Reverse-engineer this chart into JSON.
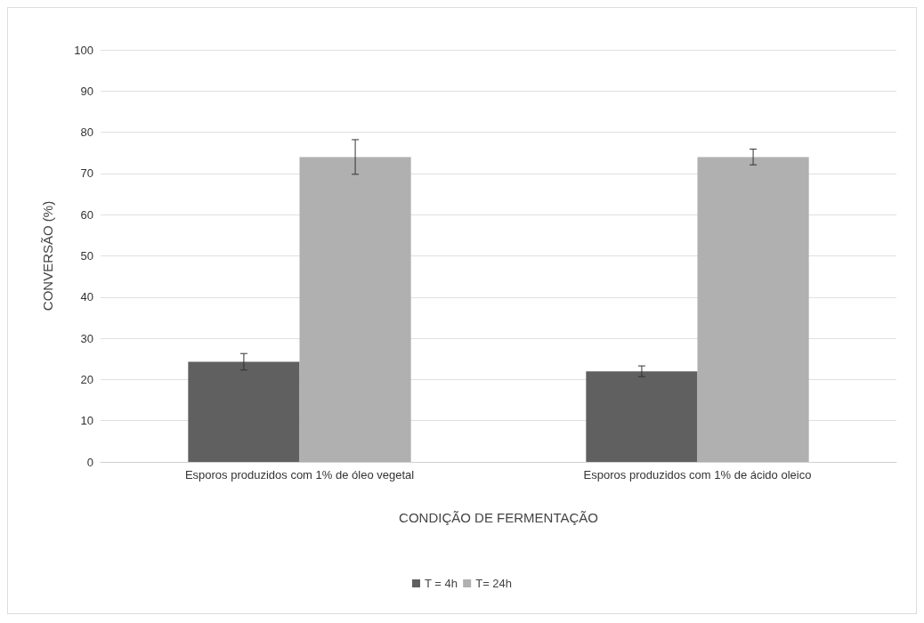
{
  "chart_data": {
    "type": "bar",
    "xlabel": "CONDIÇÃO DE FERMENTAÇÃO",
    "ylabel": "CONVERSÃO (%)",
    "categories": [
      "Esporos produzidos com 1% de óleo vegetal",
      "Esporos produzidos com 1% de ácido oleico"
    ],
    "series": [
      {
        "name": "T = 4h",
        "color": "#606060",
        "values": [
          24.3,
          22
        ],
        "errors": [
          2,
          1.3
        ]
      },
      {
        "name": "T= 24h",
        "color": "#b0b0b0",
        "values": [
          74,
          74
        ],
        "errors": [
          4.2,
          1.9
        ]
      }
    ],
    "ylim": [
      0,
      100
    ],
    "yticks": [
      0,
      10,
      20,
      30,
      40,
      50,
      60,
      70,
      80,
      90,
      100
    ],
    "grid": "y",
    "legend": "bottom"
  }
}
